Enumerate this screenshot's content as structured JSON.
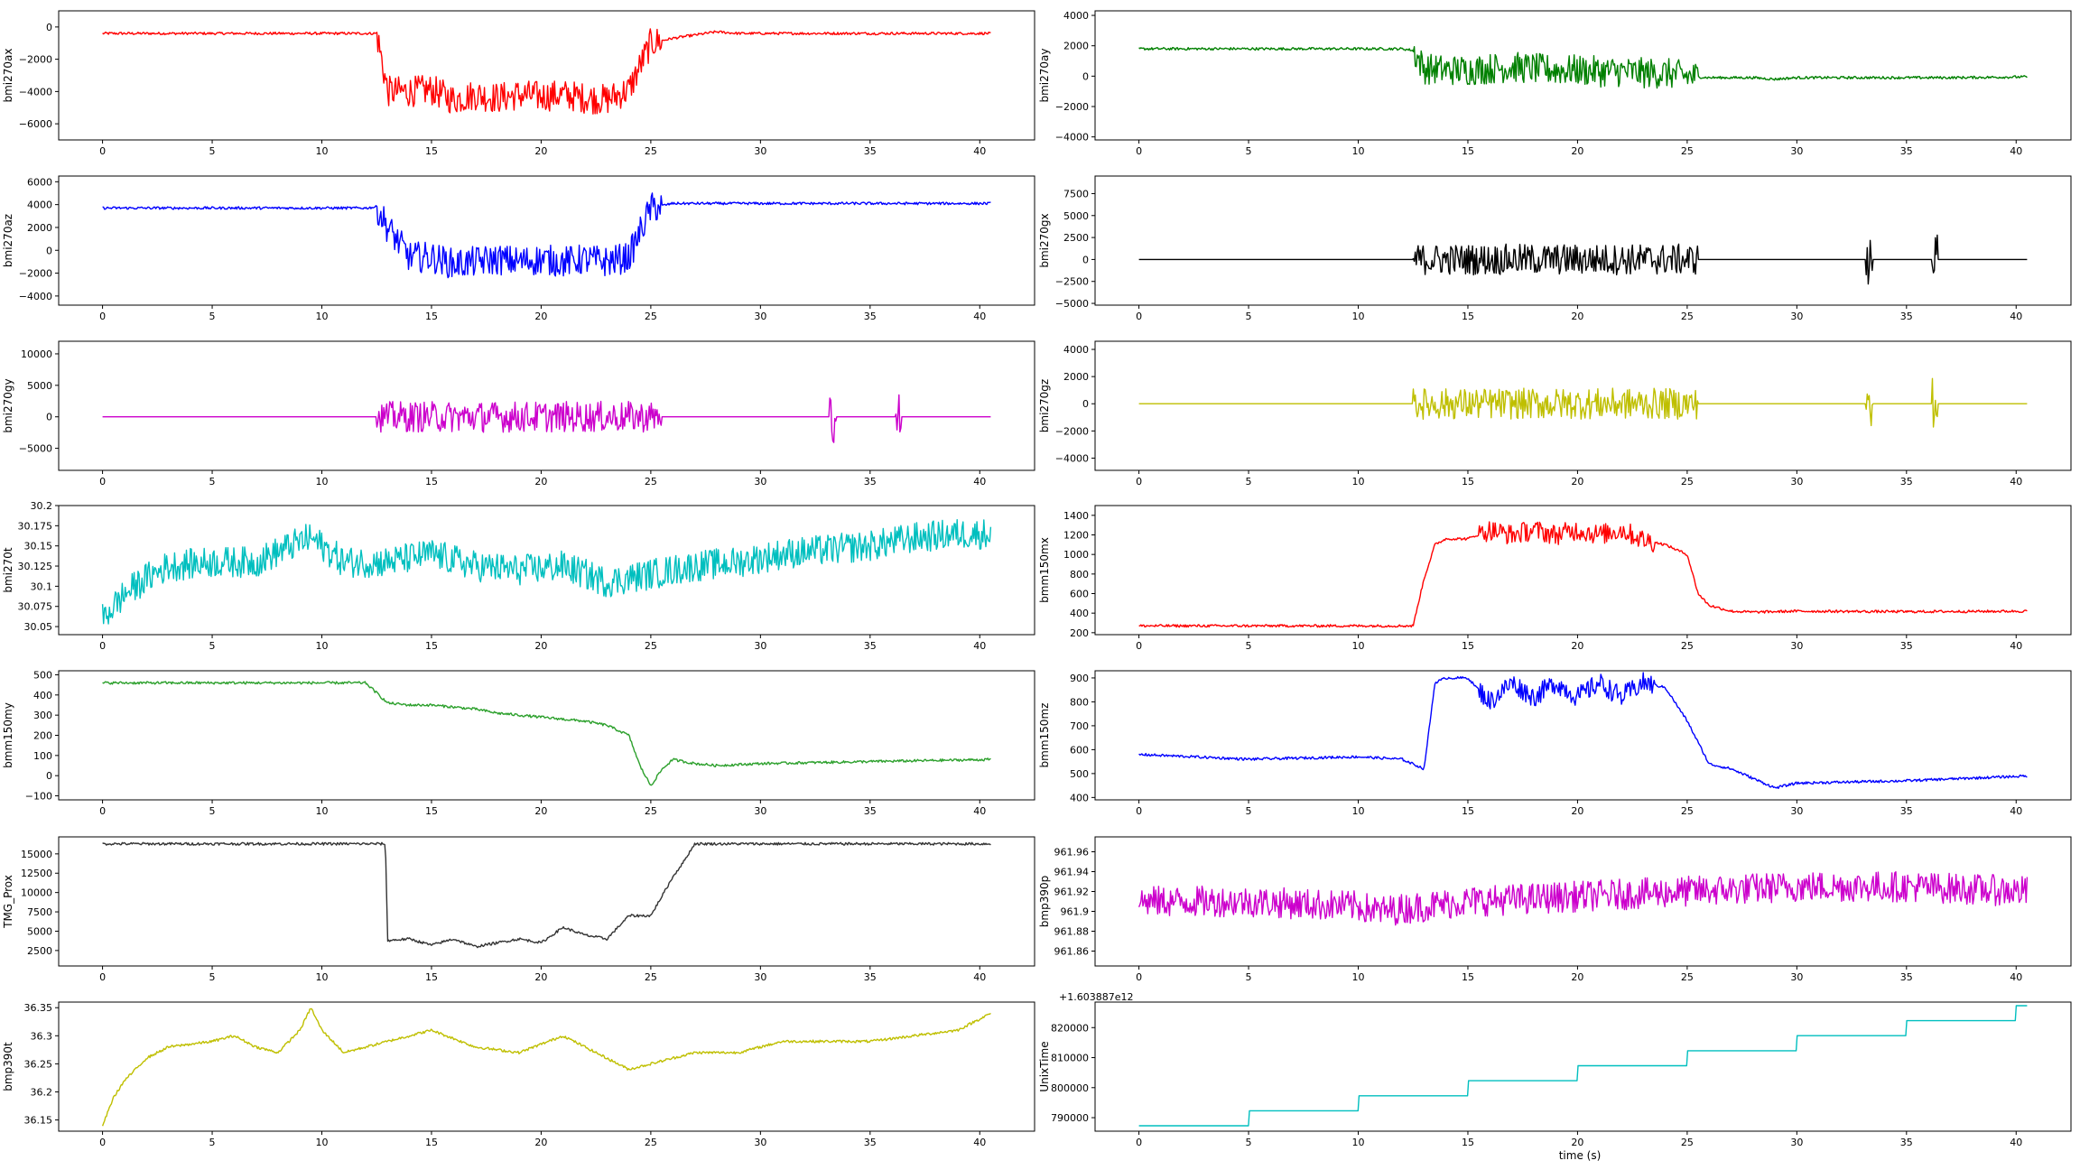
{
  "xlabel": "time (s)",
  "offset_label": "+1.603887e12",
  "chart_data": [
    {
      "type": "line",
      "ylabel": "bmi270ax",
      "color": "#ff0000",
      "xlim": [
        -2,
        42.5
      ],
      "ylim": [
        -7000,
        1000
      ],
      "yticks": [
        -6000,
        -4000,
        -2000,
        0
      ],
      "xticks": [
        0,
        5,
        10,
        15,
        20,
        25,
        30,
        35,
        40
      ],
      "series": [
        {
          "x": [
            0,
            12,
            12.5,
            13,
            14,
            15,
            16,
            17,
            18,
            19,
            20,
            21,
            22,
            23,
            24,
            25,
            26,
            27,
            28,
            29,
            30,
            33,
            34,
            36,
            37,
            40.5
          ],
          "y": [
            -400,
            -400,
            -400,
            -4000,
            -4000,
            -3900,
            -4500,
            -4200,
            -4400,
            -4200,
            -4300,
            -4200,
            -4400,
            -4500,
            -3900,
            -1000,
            -700,
            -500,
            -300,
            -400,
            -400,
            -400,
            -400,
            -400,
            -400,
            -400
          ]
        }
      ]
    },
    {
      "type": "line",
      "ylabel": "bmi270ay",
      "color": "#008000",
      "xlim": [
        -2,
        42.5
      ],
      "ylim": [
        -4200,
        4300
      ],
      "yticks": [
        -4000,
        -2000,
        0,
        2000,
        4000
      ],
      "xticks": [
        0,
        5,
        10,
        15,
        20,
        25,
        30,
        35,
        40
      ],
      "series": [
        {
          "x": [
            0,
            12,
            12.5,
            13,
            14,
            15,
            16,
            17,
            18,
            19,
            20,
            21,
            22,
            23,
            24,
            25,
            26,
            27,
            28,
            29,
            30,
            33,
            34,
            36,
            37,
            40.5
          ],
          "y": [
            1800,
            1800,
            1700,
            500,
            400,
            400,
            500,
            600,
            500,
            400,
            400,
            300,
            300,
            200,
            200,
            0,
            -100,
            -100,
            -100,
            -200,
            -100,
            -100,
            -100,
            -100,
            -100,
            -50
          ]
        }
      ]
    },
    {
      "type": "line",
      "ylabel": "bmi270az",
      "color": "#0000ff",
      "xlim": [
        -2,
        42.5
      ],
      "ylim": [
        -4800,
        6500
      ],
      "yticks": [
        -4000,
        -2000,
        0,
        2000,
        4000,
        6000
      ],
      "xticks": [
        0,
        5,
        10,
        15,
        20,
        25,
        30,
        35,
        40
      ],
      "series": [
        {
          "x": [
            0,
            12,
            12.5,
            13,
            14,
            15,
            16,
            17,
            18,
            19,
            20,
            21,
            22,
            23,
            24,
            25,
            26,
            27,
            28,
            29,
            30,
            33,
            34,
            36,
            37,
            40.5
          ],
          "y": [
            3700,
            3700,
            3800,
            2000,
            -600,
            -600,
            -1200,
            -1000,
            -800,
            -1000,
            -800,
            -1000,
            -800,
            -1000,
            -600,
            3700,
            4100,
            4100,
            4100,
            4100,
            4100,
            4100,
            4100,
            4100,
            4100,
            4100
          ]
        }
      ]
    },
    {
      "type": "line",
      "ylabel": "bmi270gx",
      "color": "#000000",
      "xlim": [
        -2,
        42.5
      ],
      "ylim": [
        -5200,
        9500
      ],
      "yticks": [
        -5000,
        -2500,
        0,
        2500,
        5000,
        7500
      ],
      "xticks": [
        0,
        5,
        10,
        15,
        20,
        25,
        30,
        35,
        40
      ],
      "series": [
        {
          "x": [
            0,
            12,
            13,
            14,
            15,
            16,
            17,
            18,
            19,
            20,
            21,
            22,
            23,
            24,
            25,
            26,
            27,
            28,
            29,
            30,
            33,
            34,
            36,
            37,
            40.5
          ],
          "y": [
            0,
            0,
            0,
            0,
            0,
            0,
            0,
            0,
            0,
            0,
            0,
            0,
            0,
            0,
            0,
            0,
            0,
            0,
            0,
            0,
            0,
            0,
            0,
            0,
            0
          ]
        }
      ]
    },
    {
      "type": "line",
      "ylabel": "bmi270gy",
      "color": "#cc00cc",
      "xlim": [
        -2,
        42.5
      ],
      "ylim": [
        -8500,
        12000
      ],
      "yticks": [
        -5000,
        0,
        5000,
        10000
      ],
      "xticks": [
        0,
        5,
        10,
        15,
        20,
        25,
        30,
        35,
        40
      ],
      "series": [
        {
          "x": [
            0,
            12,
            13,
            14,
            15,
            16,
            17,
            18,
            19,
            20,
            21,
            22,
            23,
            24,
            25,
            26,
            27,
            28,
            29,
            30,
            33,
            34,
            36,
            37,
            40.5
          ],
          "y": [
            0,
            0,
            0,
            0,
            0,
            0,
            0,
            0,
            0,
            0,
            0,
            0,
            0,
            0,
            0,
            0,
            0,
            0,
            0,
            0,
            0,
            0,
            0,
            0,
            0
          ]
        }
      ]
    },
    {
      "type": "line",
      "ylabel": "bmi270gz",
      "color": "#bfbf00",
      "xlim": [
        -2,
        42.5
      ],
      "ylim": [
        -4900,
        4600
      ],
      "yticks": [
        -4000,
        -2000,
        0,
        2000,
        4000
      ],
      "xticks": [
        0,
        5,
        10,
        15,
        20,
        25,
        30,
        35,
        40
      ],
      "series": [
        {
          "x": [
            0,
            12,
            13,
            14,
            15,
            16,
            17,
            18,
            19,
            20,
            21,
            22,
            23,
            24,
            25,
            26,
            27,
            28,
            29,
            30,
            33,
            34,
            36,
            37,
            40.5
          ],
          "y": [
            0,
            0,
            0,
            0,
            0,
            0,
            0,
            0,
            0,
            0,
            0,
            0,
            0,
            0,
            0,
            0,
            0,
            0,
            0,
            0,
            0,
            0,
            0,
            0,
            0
          ]
        }
      ]
    },
    {
      "type": "line",
      "ylabel": "bmi270t",
      "color": "#00bfbf",
      "xlim": [
        -2,
        42.5
      ],
      "ylim": [
        30.04,
        30.2
      ],
      "yticks": [
        30.05,
        30.075,
        30.1,
        30.125,
        30.15,
        30.175,
        30.2
      ],
      "xticks": [
        0,
        5,
        10,
        15,
        20,
        25,
        30,
        35,
        40
      ],
      "series": [
        {
          "x": [
            0,
            1,
            2,
            3,
            5,
            7,
            9,
            9.5,
            11,
            13,
            15,
            17,
            19,
            21,
            23,
            24,
            25,
            27,
            29,
            31,
            33,
            35,
            37,
            39,
            40.5
          ],
          "y": [
            30.06,
            30.09,
            30.11,
            30.125,
            30.13,
            30.13,
            30.155,
            30.16,
            30.13,
            30.13,
            30.14,
            30.125,
            30.12,
            30.125,
            30.105,
            30.11,
            30.115,
            30.125,
            30.13,
            30.14,
            30.145,
            30.15,
            30.16,
            30.165,
            30.165
          ]
        }
      ]
    },
    {
      "type": "line",
      "ylabel": "bmm150mx",
      "color": "#ff0000",
      "xlim": [
        -2,
        42.5
      ],
      "ylim": [
        180,
        1500
      ],
      "yticks": [
        200,
        400,
        600,
        800,
        1000,
        1200,
        1400
      ],
      "xticks": [
        0,
        5,
        10,
        15,
        20,
        25,
        30,
        35,
        40
      ],
      "series": [
        {
          "x": [
            0,
            12,
            12.5,
            13,
            13.5,
            14,
            15,
            16,
            17,
            18,
            19,
            20,
            21,
            22,
            23,
            24,
            25,
            25.5,
            26,
            27,
            28,
            30,
            35,
            40.5
          ],
          "y": [
            270,
            270,
            270,
            750,
            1100,
            1160,
            1160,
            1250,
            1200,
            1250,
            1200,
            1250,
            1200,
            1250,
            1150,
            1100,
            1000,
            600,
            480,
            420,
            410,
            420,
            415,
            420
          ]
        }
      ]
    },
    {
      "type": "line",
      "ylabel": "bmm150my",
      "color": "#2ca02c",
      "xlim": [
        -2,
        42.5
      ],
      "ylim": [
        -120,
        520
      ],
      "yticks": [
        -100,
        0,
        100,
        200,
        300,
        400,
        500
      ],
      "xticks": [
        0,
        5,
        10,
        15,
        20,
        25,
        30,
        35,
        40
      ],
      "series": [
        {
          "x": [
            0,
            5,
            10,
            12,
            13,
            14,
            15,
            16,
            17,
            18,
            19,
            20,
            21,
            22,
            23,
            24,
            24.5,
            25,
            25.5,
            26,
            27,
            28,
            30,
            35,
            40.5
          ],
          "y": [
            460,
            460,
            460,
            460,
            360,
            350,
            350,
            340,
            330,
            310,
            300,
            290,
            280,
            270,
            250,
            200,
            50,
            -50,
            30,
            80,
            60,
            50,
            60,
            70,
            80
          ]
        }
      ]
    },
    {
      "type": "line",
      "ylabel": "bmm150mz",
      "color": "#0000ff",
      "xlim": [
        -2,
        42.5
      ],
      "ylim": [
        390,
        930
      ],
      "yticks": [
        400,
        500,
        600,
        700,
        800,
        900
      ],
      "xticks": [
        0,
        5,
        10,
        15,
        20,
        25,
        30,
        35,
        40
      ],
      "series": [
        {
          "x": [
            0,
            5,
            10,
            12,
            13,
            13.5,
            14,
            15,
            16,
            17,
            18,
            19,
            20,
            21,
            22,
            23,
            24,
            25,
            26,
            27,
            28,
            29,
            30,
            35,
            40.5
          ],
          "y": [
            580,
            560,
            570,
            560,
            520,
            880,
            900,
            900,
            800,
            880,
            820,
            880,
            820,
            880,
            820,
            880,
            860,
            720,
            540,
            520,
            480,
            440,
            460,
            470,
            490
          ]
        }
      ]
    },
    {
      "type": "line",
      "ylabel": "TMG_Prox",
      "color": "#333333",
      "xlim": [
        -2,
        42.5
      ],
      "ylim": [
        500,
        17200
      ],
      "yticks": [
        2500,
        5000,
        7500,
        10000,
        12500,
        15000
      ],
      "xticks": [
        0,
        5,
        10,
        15,
        20,
        25,
        30,
        35,
        40
      ],
      "series": [
        {
          "x": [
            0,
            5,
            10,
            12.9,
            13,
            14,
            15,
            16,
            17,
            18,
            19,
            20,
            21,
            22,
            23,
            24,
            25,
            26,
            26.5,
            27,
            28,
            29,
            30,
            35,
            40.5
          ],
          "y": [
            16300,
            16300,
            16300,
            16300,
            3800,
            4000,
            3200,
            4000,
            3000,
            3500,
            4000,
            3500,
            5500,
            4500,
            4000,
            7000,
            7000,
            12000,
            14000,
            16300,
            16300,
            16300,
            16300,
            16300,
            16300
          ]
        }
      ]
    },
    {
      "type": "line",
      "ylabel": "bmp390p",
      "color": "#cc00cc",
      "xlim": [
        -2,
        42.5
      ],
      "ylim": [
        961.845,
        961.975
      ],
      "yticks": [
        961.86,
        961.88,
        961.9,
        961.92,
        961.94,
        961.96
      ],
      "xticks": [
        0,
        5,
        10,
        15,
        20,
        25,
        30,
        35,
        40
      ],
      "series": [
        {
          "x": [
            0,
            5,
            10,
            11,
            15,
            20,
            25,
            30,
            35,
            40.5
          ],
          "y": [
            961.91,
            961.91,
            961.905,
            961.9,
            961.91,
            961.915,
            961.92,
            961.925,
            961.925,
            961.92
          ]
        }
      ]
    },
    {
      "type": "line",
      "ylabel": "bmp390t",
      "color": "#bfbf00",
      "xlim": [
        -2,
        42.5
      ],
      "ylim": [
        36.13,
        36.36
      ],
      "yticks": [
        36.15,
        36.2,
        36.25,
        36.3,
        36.35
      ],
      "xticks": [
        0,
        5,
        10,
        15,
        20,
        25,
        30,
        35,
        40
      ],
      "series": [
        {
          "x": [
            0,
            0.5,
            1,
            2,
            3,
            5,
            6,
            7,
            8,
            9,
            9.5,
            10,
            11,
            13,
            15,
            17,
            19,
            21,
            23,
            24,
            25,
            27,
            29,
            31,
            33,
            35,
            37,
            39,
            40.5
          ],
          "y": [
            36.14,
            36.19,
            36.22,
            36.26,
            36.28,
            36.29,
            36.3,
            36.28,
            36.27,
            36.31,
            36.35,
            36.31,
            36.27,
            36.29,
            36.31,
            36.28,
            36.27,
            36.3,
            36.26,
            36.24,
            36.25,
            36.27,
            36.27,
            36.29,
            36.29,
            36.29,
            36.3,
            36.31,
            36.34
          ]
        }
      ]
    },
    {
      "type": "line",
      "ylabel": "UnixTime",
      "color": "#00bfbf",
      "xlim": [
        -2,
        42.5
      ],
      "ylim": [
        785500,
        828500
      ],
      "yticks": [
        790000,
        800000,
        810000,
        820000
      ],
      "xticks": [
        0,
        5,
        10,
        15,
        20,
        25,
        30,
        35,
        40
      ],
      "series": [
        {
          "x": [
            0,
            5,
            5,
            10,
            10,
            15,
            15,
            20,
            20,
            25,
            25,
            30,
            30,
            35,
            35,
            40,
            40,
            40.5
          ],
          "y": [
            787300,
            787300,
            792300,
            792300,
            797300,
            797300,
            802300,
            802300,
            807300,
            807300,
            812300,
            812300,
            817300,
            817300,
            822300,
            822300,
            827300,
            827300
          ]
        }
      ]
    }
  ]
}
